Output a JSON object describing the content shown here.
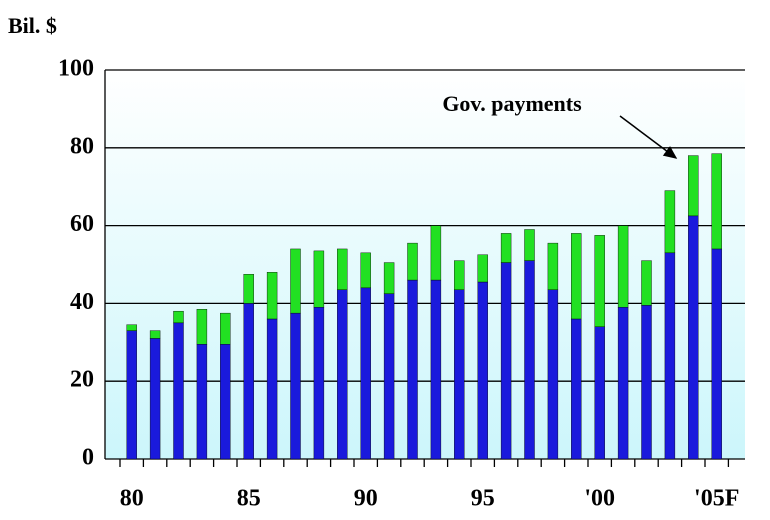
{
  "chart_data": {
    "type": "stacked-bar",
    "y_label": "Bil. $",
    "categories": [
      "80",
      null,
      null,
      null,
      null,
      "85",
      null,
      null,
      null,
      null,
      "90",
      null,
      null,
      null,
      null,
      "95",
      null,
      null,
      null,
      null,
      "'00",
      null,
      null,
      null,
      null,
      "'05F"
    ],
    "series": [
      {
        "color": "#1a1adc",
        "values": [
          33,
          31,
          35,
          29.5,
          29.5,
          40,
          36,
          37.5,
          39,
          43.5,
          44,
          42.5,
          46,
          46,
          43.5,
          45.5,
          50.5,
          51,
          43.5,
          36,
          34,
          39,
          39.5,
          53,
          62.5,
          54
        ]
      },
      {
        "name": "Gov. payments",
        "color": "#22e022",
        "values": [
          1.5,
          2,
          3,
          9,
          8,
          7.5,
          12,
          16.5,
          14.5,
          10.5,
          9,
          8,
          9.5,
          14,
          7.5,
          7,
          7.5,
          8,
          12,
          22,
          23.5,
          21,
          11.5,
          16,
          15.5,
          24.5
        ]
      }
    ],
    "ylim": [
      0,
      100
    ],
    "yticks": [
      0,
      20,
      40,
      60,
      80,
      100
    ],
    "grid": true
  }
}
